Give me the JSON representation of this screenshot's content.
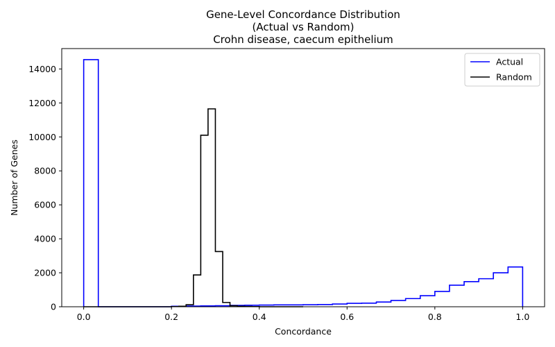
{
  "chart_data": {
    "type": "step",
    "title": [
      "Gene-Level Concordance Distribution",
      "(Actual vs Random)",
      "Crohn disease, caecum epithelium"
    ],
    "xlabel": "Concordance",
    "ylabel": "Number of Genes",
    "xlim": [
      -0.05,
      1.05
    ],
    "ylim": [
      0,
      15200
    ],
    "xticks": [
      0.0,
      0.2,
      0.4,
      0.6,
      0.8,
      1.0
    ],
    "xtick_labels": [
      "0.0",
      "0.2",
      "0.4",
      "0.6",
      "0.8",
      "1.0"
    ],
    "yticks": [
      0,
      2000,
      4000,
      6000,
      8000,
      10000,
      12000,
      14000
    ],
    "ytick_labels": [
      "0",
      "2000",
      "4000",
      "6000",
      "8000",
      "10000",
      "12000",
      "14000"
    ],
    "grid": false,
    "legend_position": "top-right",
    "series": [
      {
        "name": "Actual",
        "color": "#0000ff",
        "bin_edges": [
          0.0,
          0.0333,
          0.0667,
          0.1,
          0.1333,
          0.1667,
          0.2,
          0.2333,
          0.2667,
          0.3,
          0.3333,
          0.3667,
          0.4,
          0.4333,
          0.4667,
          0.5,
          0.5333,
          0.5667,
          0.6,
          0.6333,
          0.6667,
          0.7,
          0.7333,
          0.7667,
          0.8,
          0.8333,
          0.8667,
          0.9,
          0.9333,
          0.9667,
          1.0
        ],
        "counts": [
          14550,
          0,
          0,
          0,
          0,
          0,
          30,
          40,
          50,
          60,
          80,
          90,
          100,
          110,
          110,
          120,
          130,
          160,
          200,
          210,
          280,
          370,
          480,
          650,
          900,
          1270,
          1480,
          1650,
          2000,
          2340
        ]
      },
      {
        "name": "Random",
        "color": "#000000",
        "bin_edges": [
          0.0,
          0.0167,
          0.0333,
          0.05,
          0.0667,
          0.0833,
          0.1,
          0.1167,
          0.1333,
          0.15,
          0.1667,
          0.1833,
          0.2,
          0.2167,
          0.2333,
          0.25,
          0.2667,
          0.2833,
          0.3,
          0.3167,
          0.3333,
          0.35,
          0.3667,
          0.3833,
          0.4,
          0.4167,
          0.4333,
          0.45,
          0.4667,
          0.4833,
          0.5
        ],
        "counts": [
          0,
          0,
          0,
          0,
          0,
          0,
          0,
          0,
          0,
          0,
          0,
          0,
          10,
          30,
          120,
          1870,
          10100,
          11650,
          3250,
          250,
          60,
          30,
          20,
          10,
          0,
          0,
          0,
          0,
          0,
          0
        ]
      }
    ]
  }
}
